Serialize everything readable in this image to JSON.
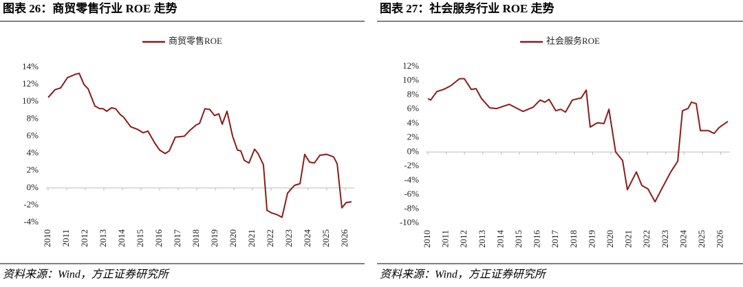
{
  "chart_data": [
    {
      "type": "line",
      "title": "图表 26：商贸零售行业 ROE 走势",
      "source": "资料来源：Wind，方正证券研究所",
      "x": [
        2010,
        2010.37,
        2010.67,
        2011.04,
        2011.48,
        2011.67,
        2011.93,
        2012.15,
        2012.52,
        2012.78,
        2012.96,
        2013.15,
        2013.41,
        2013.63,
        2013.89,
        2014.07,
        2014.44,
        2014.81,
        2015.11,
        2015.37,
        2015.74,
        2016.0,
        2016.3,
        2016.52,
        2016.85,
        2017.33,
        2017.59,
        2017.96,
        2018.15,
        2018.44,
        2018.7,
        2018.96,
        2019.19,
        2019.37,
        2019.63,
        2019.93,
        2020.19,
        2020.37,
        2020.56,
        2020.81,
        2021.11,
        2021.3,
        2021.59,
        2021.78,
        2022.04,
        2022.33,
        2022.59,
        2022.89,
        2023.26,
        2023.56,
        2023.81,
        2024.07,
        2024.33,
        2024.63,
        2025.0,
        2025.37,
        2025.56,
        2025.81,
        2026.04,
        2026.33
      ],
      "series": [
        {
          "name": "商贸零售ROE",
          "color": "#8b1a1a",
          "values": [
            10.5,
            11.4,
            11.6,
            12.8,
            13.2,
            13.3,
            12.0,
            11.5,
            9.5,
            9.2,
            9.2,
            8.9,
            9.3,
            9.2,
            8.5,
            8.2,
            7.1,
            6.8,
            6.4,
            6.6,
            5.2,
            4.4,
            4.0,
            4.3,
            5.9,
            6.0,
            6.6,
            7.3,
            7.5,
            9.2,
            9.1,
            8.4,
            8.6,
            7.4,
            8.9,
            6.0,
            4.4,
            4.3,
            3.2,
            2.9,
            4.5,
            4.0,
            2.7,
            -2.6,
            -2.9,
            -3.1,
            -3.4,
            -0.6,
            0.3,
            0.5,
            3.9,
            3.0,
            2.9,
            3.8,
            3.9,
            3.6,
            2.8,
            -2.3,
            -1.7,
            -1.6
          ]
        }
      ],
      "xlim": [
        2010,
        2026.5
      ],
      "xticks": [
        2010,
        2011,
        2012,
        2013,
        2014,
        2015,
        2016,
        2017,
        2018,
        2019,
        2020,
        2021,
        2022,
        2023,
        2024,
        2025,
        2026
      ],
      "ylim": [
        -4,
        14
      ],
      "yticks": [
        {
          "value": 14,
          "label": "14%"
        },
        {
          "value": 12,
          "label": "12%"
        },
        {
          "value": 10,
          "label": "10%"
        },
        {
          "value": 8,
          "label": "8%"
        },
        {
          "value": 6,
          "label": "6%"
        },
        {
          "value": 4,
          "label": "4%"
        },
        {
          "value": 2,
          "label": "2%"
        },
        {
          "value": 0,
          "label": "0%"
        },
        {
          "value": -2,
          "label": "-2%"
        },
        {
          "value": -4,
          "label": "-4%"
        }
      ],
      "legend": "top"
    },
    {
      "type": "line",
      "title": "图表 27：社会服务行业 ROE 走势",
      "source": "资料来源：Wind，方正证券研究所",
      "x": [
        2010.0,
        2010.15,
        2010.49,
        2010.86,
        2011.24,
        2011.73,
        2011.99,
        2012.37,
        2012.63,
        2012.93,
        2013.38,
        2013.76,
        2014.44,
        2015.19,
        2015.75,
        2016.13,
        2016.39,
        2016.62,
        2016.99,
        2017.26,
        2017.52,
        2017.89,
        2018.38,
        2018.65,
        2018.87,
        2019.25,
        2019.62,
        2019.89,
        2020.26,
        2020.64,
        2020.9,
        2021.39,
        2021.69,
        2022.03,
        2022.41,
        2022.71,
        2023.27,
        2023.65,
        2023.91,
        2024.21,
        2024.4,
        2024.66,
        2024.89,
        2025.34,
        2025.64,
        2025.9,
        2026.39
      ],
      "series": [
        {
          "name": "社会服务ROE",
          "color": "#8b1a1a",
          "values": [
            7.5,
            7.3,
            8.5,
            8.8,
            9.3,
            10.3,
            10.3,
            8.8,
            8.9,
            7.5,
            6.2,
            6.1,
            6.7,
            5.7,
            6.3,
            7.3,
            7.0,
            7.4,
            5.8,
            6.0,
            5.6,
            7.3,
            7.6,
            8.7,
            3.5,
            4.1,
            4.0,
            6.0,
            0.0,
            -1.2,
            -5.3,
            -2.8,
            -4.7,
            -5.2,
            -7.0,
            -5.5,
            -2.8,
            -1.3,
            5.8,
            6.1,
            7.0,
            6.8,
            3.0,
            3.0,
            2.6,
            3.4,
            4.3
          ]
        }
      ],
      "xlim": [
        2010,
        2026.5
      ],
      "xticks": [
        2010,
        2011,
        2012,
        2013,
        2014,
        2015,
        2016,
        2017,
        2018,
        2019,
        2020,
        2021,
        2022,
        2023,
        2024,
        2025,
        2026
      ],
      "ylim": [
        -10,
        12
      ],
      "yticks": [
        {
          "value": 12,
          "label": "12%"
        },
        {
          "value": 10,
          "label": "10%"
        },
        {
          "value": 8,
          "label": "8%"
        },
        {
          "value": 6,
          "label": "6%"
        },
        {
          "value": 4,
          "label": "4%"
        },
        {
          "value": 2,
          "label": "2%"
        },
        {
          "value": 0,
          "label": "0%"
        },
        {
          "value": -2,
          "label": "-2%"
        },
        {
          "value": -4,
          "label": "-4%"
        },
        {
          "value": -6,
          "label": "-6%"
        },
        {
          "value": -8,
          "label": "-8%"
        },
        {
          "value": -10,
          "label": "-10%"
        }
      ],
      "legend": "top"
    }
  ]
}
